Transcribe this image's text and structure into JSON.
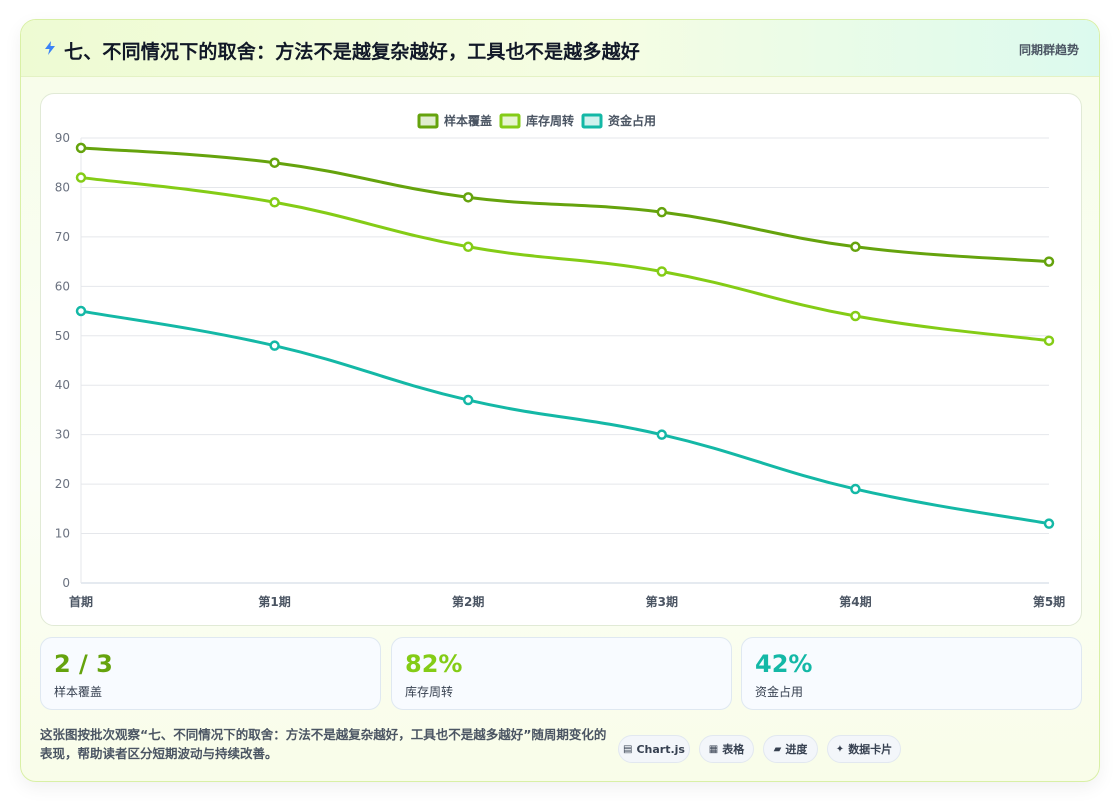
{
  "header": {
    "icon": "lightning-icon",
    "title": "七、不同情况下的取舍：方法不是越复杂越好，工具也不是越多越好",
    "tag": "同期群趋势"
  },
  "chart_data": {
    "type": "line",
    "title": "",
    "xlabel": "",
    "ylabel": "",
    "categories": [
      "首期",
      "第1期",
      "第2期",
      "第3期",
      "第4期",
      "第5期"
    ],
    "ylim": [
      0,
      90
    ],
    "yticks": [
      0,
      10,
      20,
      30,
      40,
      50,
      60,
      70,
      80,
      90
    ],
    "grid": true,
    "legend_position": "top-center",
    "series": [
      {
        "name": "样本覆盖",
        "color": "#65a30d",
        "values": [
          88,
          85,
          78,
          75,
          68,
          65
        ]
      },
      {
        "name": "库存周转",
        "color": "#84cc16",
        "values": [
          82,
          77,
          68,
          63,
          54,
          49
        ]
      },
      {
        "name": "资金占用",
        "color": "#14b8a6",
        "values": [
          55,
          48,
          37,
          30,
          19,
          12
        ]
      }
    ]
  },
  "stats": [
    {
      "value": "2 / 3",
      "label": "样本覆盖",
      "color": "#65a30d"
    },
    {
      "value": "82%",
      "label": "库存周转",
      "color": "#84cc16"
    },
    {
      "value": "42%",
      "label": "资金占用",
      "color": "#14b8a6"
    }
  ],
  "footer": {
    "description": "这张图按批次观察“七、不同情况下的取舍：方法不是越复杂越好，工具也不是越多越好”随周期变化的表现，帮助读者区分短期波动与持续改善。",
    "chips": [
      {
        "icon": "▤",
        "icon_name": "chart-icon",
        "label": "Chart.js"
      },
      {
        "icon": "▦",
        "icon_name": "table-icon",
        "label": "表格"
      },
      {
        "icon": "▰",
        "icon_name": "progress-icon",
        "label": "进度"
      },
      {
        "icon": "✦",
        "icon_name": "sparkle-icon",
        "label": "数据卡片"
      }
    ]
  }
}
